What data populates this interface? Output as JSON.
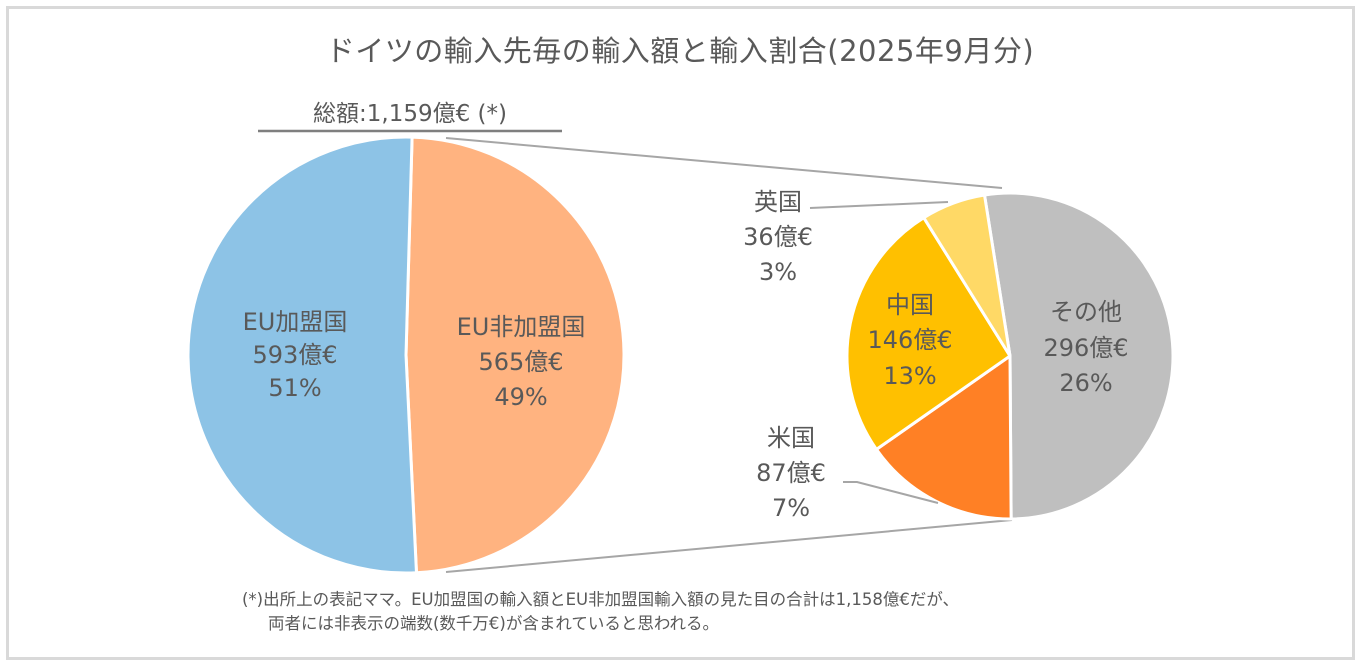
{
  "title": "ドイツの輸入先毎の輸入額と輸入割合(2025年9月分)",
  "total_label": "総額:1,159億€ (*)",
  "footnote": {
    "line1": "(*)出所上の表記ママ。EU加盟国の輸入額とEU非加盟国輸入額の見た目の合計は1,158億€だが、",
    "line2": "両者には非表示の端数(数千万€)が含まれていると思われる。"
  },
  "chart_data": {
    "type": "pie",
    "title": "ドイツの輸入先毎の輸入額と輸入割合(2025年9月分)",
    "unit": "億€",
    "total": 1159,
    "main_pie": {
      "slices": [
        {
          "name": "EU加盟国",
          "value": 593,
          "value_label": "593億€",
          "percent_label": "51%",
          "color": "#8dc3e6"
        },
        {
          "name": "EU非加盟国",
          "value": 565,
          "value_label": "565億€",
          "percent_label": "49%",
          "color": "#ffb380"
        }
      ]
    },
    "breakdown_pie": {
      "of": "EU非加盟国",
      "slices": [
        {
          "name": "その他",
          "value": 296,
          "value_label": "296億€",
          "percent_label": "26%",
          "color": "#bfbfbf"
        },
        {
          "name": "米国",
          "value": 87,
          "value_label": "87億€",
          "percent_label": "7%",
          "color": "#ff8025"
        },
        {
          "name": "中国",
          "value": 146,
          "value_label": "146億€",
          "percent_label": "13%",
          "color": "#ffc000"
        },
        {
          "name": "英国",
          "value": 36,
          "value_label": "36億€",
          "percent_label": "3%",
          "color": "#ffd966"
        }
      ]
    }
  }
}
